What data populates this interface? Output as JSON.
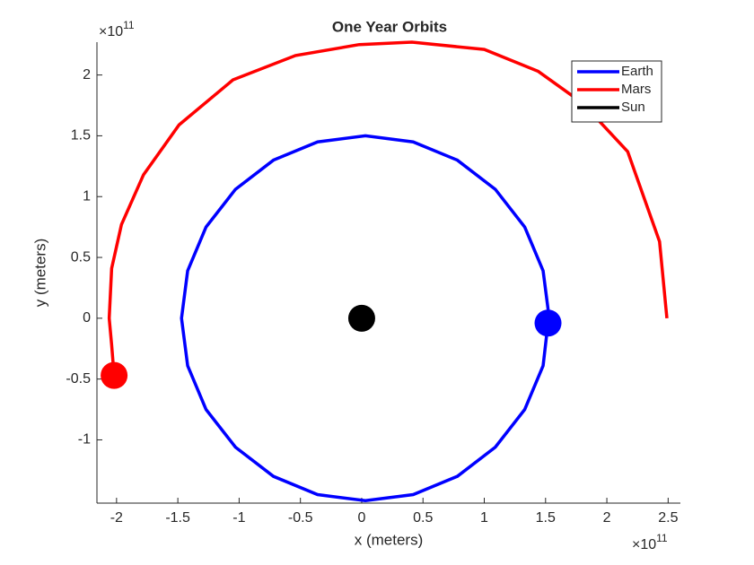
{
  "chart_data": {
    "type": "line",
    "title": "One Year Orbits",
    "xlabel": "x (meters)",
    "ylabel": "y (meters)",
    "x_multiplier": {
      "base": "×10",
      "exponent": "11"
    },
    "y_multiplier": {
      "base": "×10",
      "exponent": "11"
    },
    "xlim": [
      -2.16,
      2.6
    ],
    "ylim": [
      -1.52,
      2.27
    ],
    "xticks": [
      -2,
      -1.5,
      -1,
      -0.5,
      0,
      0.5,
      1,
      1.5,
      2,
      2.5
    ],
    "yticks": [
      -1,
      -0.5,
      0,
      0.5,
      1,
      1.5,
      2
    ],
    "legend": "upper right",
    "series": [
      {
        "name": "Earth",
        "color": "#0000ff",
        "x": [
          1.53,
          1.48,
          1.33,
          1.09,
          0.78,
          0.42,
          0.03,
          -0.36,
          -0.72,
          -1.03,
          -1.27,
          -1.42,
          -1.47,
          -1.42,
          -1.27,
          -1.03,
          -0.72,
          -0.36,
          0.03,
          0.42,
          0.78,
          1.09,
          1.33,
          1.48,
          1.52
        ],
        "y": [
          0,
          0.39,
          0.75,
          1.06,
          1.3,
          1.45,
          1.5,
          1.45,
          1.3,
          1.06,
          0.75,
          0.39,
          0,
          -0.39,
          -0.75,
          -1.06,
          -1.3,
          -1.45,
          -1.5,
          -1.45,
          -1.3,
          -1.06,
          -0.75,
          -0.39,
          -0.04
        ]
      },
      {
        "name": "Mars",
        "color": "#ff0000",
        "x": [
          2.49,
          2.43,
          2.17,
          1.8,
          1.44,
          1.0,
          0.41,
          -0.02,
          -0.54,
          -1.05,
          -1.49,
          -1.78,
          -1.96,
          -2.04,
          -2.06,
          -2.04,
          -2.02
        ],
        "y": [
          0,
          0.63,
          1.37,
          1.77,
          2.03,
          2.21,
          2.27,
          2.25,
          2.16,
          1.96,
          1.59,
          1.18,
          0.77,
          0.41,
          0,
          -0.22,
          -0.47
        ]
      },
      {
        "name": "Sun",
        "color": "#000000",
        "x": [
          0
        ],
        "y": [
          0
        ]
      }
    ]
  }
}
